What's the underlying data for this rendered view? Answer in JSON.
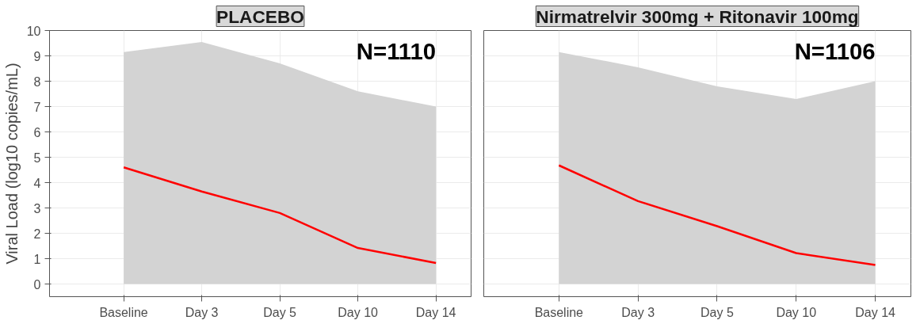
{
  "chart_data": [
    {
      "type": "line",
      "title": "PLACEBO",
      "ylabel": "Viral Load (log10 copies/mL)",
      "categories": [
        "Baseline",
        "Day 3",
        "Day 5",
        "Day 10",
        "Day 14"
      ],
      "ylim": [
        -0.5,
        10
      ],
      "yticks": [
        0,
        1,
        2,
        3,
        4,
        5,
        6,
        7,
        8,
        9,
        10
      ],
      "grid": true,
      "annotations": [
        "N=1110"
      ],
      "series": [
        {
          "color": "#ff0000",
          "values": [
            4.6,
            3.65,
            2.8,
            1.42,
            0.83
          ],
          "lower": [
            0,
            0,
            0,
            0,
            0
          ],
          "upper": [
            9.15,
            9.55,
            8.7,
            7.6,
            7.0
          ]
        }
      ]
    },
    {
      "type": "line",
      "title": "Nirmatrelvir 300mg + Ritonavir 100mg",
      "categories": [
        "Baseline",
        "Day 3",
        "Day 5",
        "Day 10",
        "Day 14"
      ],
      "ylim": [
        -0.5,
        10
      ],
      "yticks": [
        0,
        1,
        2,
        3,
        4,
        5,
        6,
        7,
        8,
        9,
        10
      ],
      "grid": true,
      "tick_labels": "x",
      "annotations": [
        "N=1106"
      ],
      "series": [
        {
          "color": "#ff0000",
          "values": [
            4.68,
            3.27,
            2.28,
            1.22,
            0.75
          ],
          "lower": [
            0,
            0,
            0,
            0,
            0
          ],
          "upper": [
            9.15,
            8.55,
            7.8,
            7.3,
            8.0
          ]
        }
      ]
    }
  ]
}
